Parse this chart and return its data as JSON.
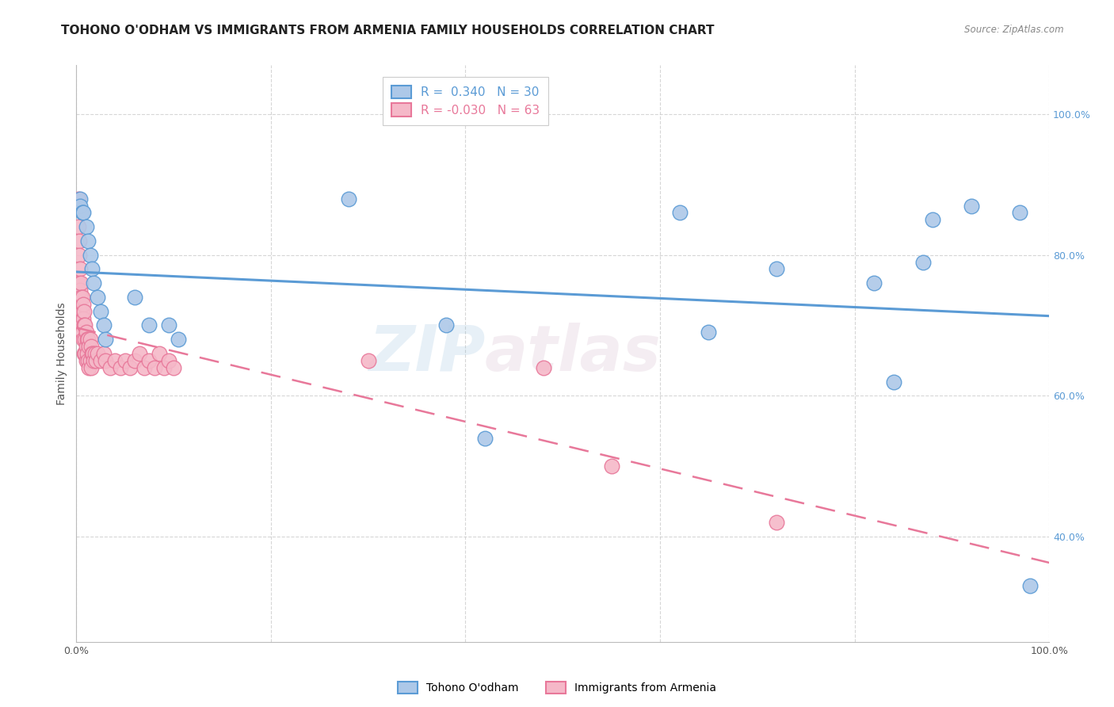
{
  "title": "TOHONO O'ODHAM VS IMMIGRANTS FROM ARMENIA FAMILY HOUSEHOLDS CORRELATION CHART",
  "source": "Source: ZipAtlas.com",
  "ylabel": "Family Households",
  "r_blue": 0.34,
  "n_blue": 30,
  "r_pink": -0.03,
  "n_pink": 63,
  "blue_color": "#adc8e8",
  "pink_color": "#f5b8c8",
  "blue_line_color": "#5b9bd5",
  "pink_line_color": "#e8789a",
  "watermark_line1": "ZIP",
  "watermark_line2": "atlas",
  "legend_label_blue": "Tohono O'odham",
  "legend_label_pink": "Immigrants from Armenia",
  "blue_x": [
    0.004,
    0.004,
    0.006,
    0.007,
    0.01,
    0.012,
    0.014,
    0.016,
    0.018,
    0.022,
    0.025,
    0.028,
    0.03,
    0.06,
    0.075,
    0.095,
    0.105,
    0.28,
    0.38,
    0.42,
    0.62,
    0.65,
    0.72,
    0.82,
    0.84,
    0.87,
    0.88,
    0.92,
    0.97,
    0.98
  ],
  "blue_y": [
    0.88,
    0.87,
    0.86,
    0.86,
    0.84,
    0.82,
    0.8,
    0.78,
    0.76,
    0.74,
    0.72,
    0.7,
    0.68,
    0.74,
    0.7,
    0.7,
    0.68,
    0.88,
    0.7,
    0.54,
    0.86,
    0.69,
    0.78,
    0.76,
    0.62,
    0.79,
    0.85,
    0.87,
    0.86,
    0.33
  ],
  "pink_x": [
    0.002,
    0.002,
    0.003,
    0.003,
    0.003,
    0.004,
    0.004,
    0.004,
    0.005,
    0.005,
    0.005,
    0.006,
    0.006,
    0.006,
    0.007,
    0.007,
    0.007,
    0.008,
    0.008,
    0.008,
    0.009,
    0.009,
    0.009,
    0.01,
    0.01,
    0.01,
    0.011,
    0.011,
    0.012,
    0.012,
    0.013,
    0.013,
    0.014,
    0.014,
    0.015,
    0.015,
    0.016,
    0.017,
    0.018,
    0.019,
    0.02,
    0.022,
    0.025,
    0.028,
    0.03,
    0.035,
    0.04,
    0.045,
    0.05,
    0.055,
    0.06,
    0.065,
    0.07,
    0.075,
    0.08,
    0.085,
    0.09,
    0.095,
    0.1,
    0.3,
    0.48,
    0.55,
    0.72
  ],
  "pink_y": [
    0.88,
    0.84,
    0.82,
    0.8,
    0.76,
    0.78,
    0.75,
    0.72,
    0.76,
    0.74,
    0.7,
    0.74,
    0.72,
    0.69,
    0.73,
    0.71,
    0.68,
    0.72,
    0.7,
    0.66,
    0.7,
    0.68,
    0.66,
    0.69,
    0.67,
    0.65,
    0.68,
    0.66,
    0.68,
    0.65,
    0.67,
    0.64,
    0.68,
    0.65,
    0.67,
    0.64,
    0.66,
    0.66,
    0.65,
    0.66,
    0.65,
    0.66,
    0.65,
    0.66,
    0.65,
    0.64,
    0.65,
    0.64,
    0.65,
    0.64,
    0.65,
    0.66,
    0.64,
    0.65,
    0.64,
    0.66,
    0.64,
    0.65,
    0.64,
    0.65,
    0.64,
    0.5,
    0.42
  ],
  "xlim": [
    0.0,
    1.0
  ],
  "ylim": [
    0.25,
    1.07
  ],
  "yticks": [
    0.4,
    0.6,
    0.8,
    1.0
  ],
  "ytick_labels": [
    "40.0%",
    "60.0%",
    "80.0%",
    "100.0%"
  ],
  "xticks": [
    0.0,
    0.2,
    0.4,
    0.6,
    0.8,
    1.0
  ],
  "xtick_labels": [
    "0.0%",
    "",
    "",
    "",
    "",
    "100.0%"
  ],
  "grid_color": "#cccccc",
  "background_color": "#ffffff",
  "title_fontsize": 11,
  "axis_label_fontsize": 10,
  "tick_fontsize": 9,
  "legend_fontsize": 11
}
